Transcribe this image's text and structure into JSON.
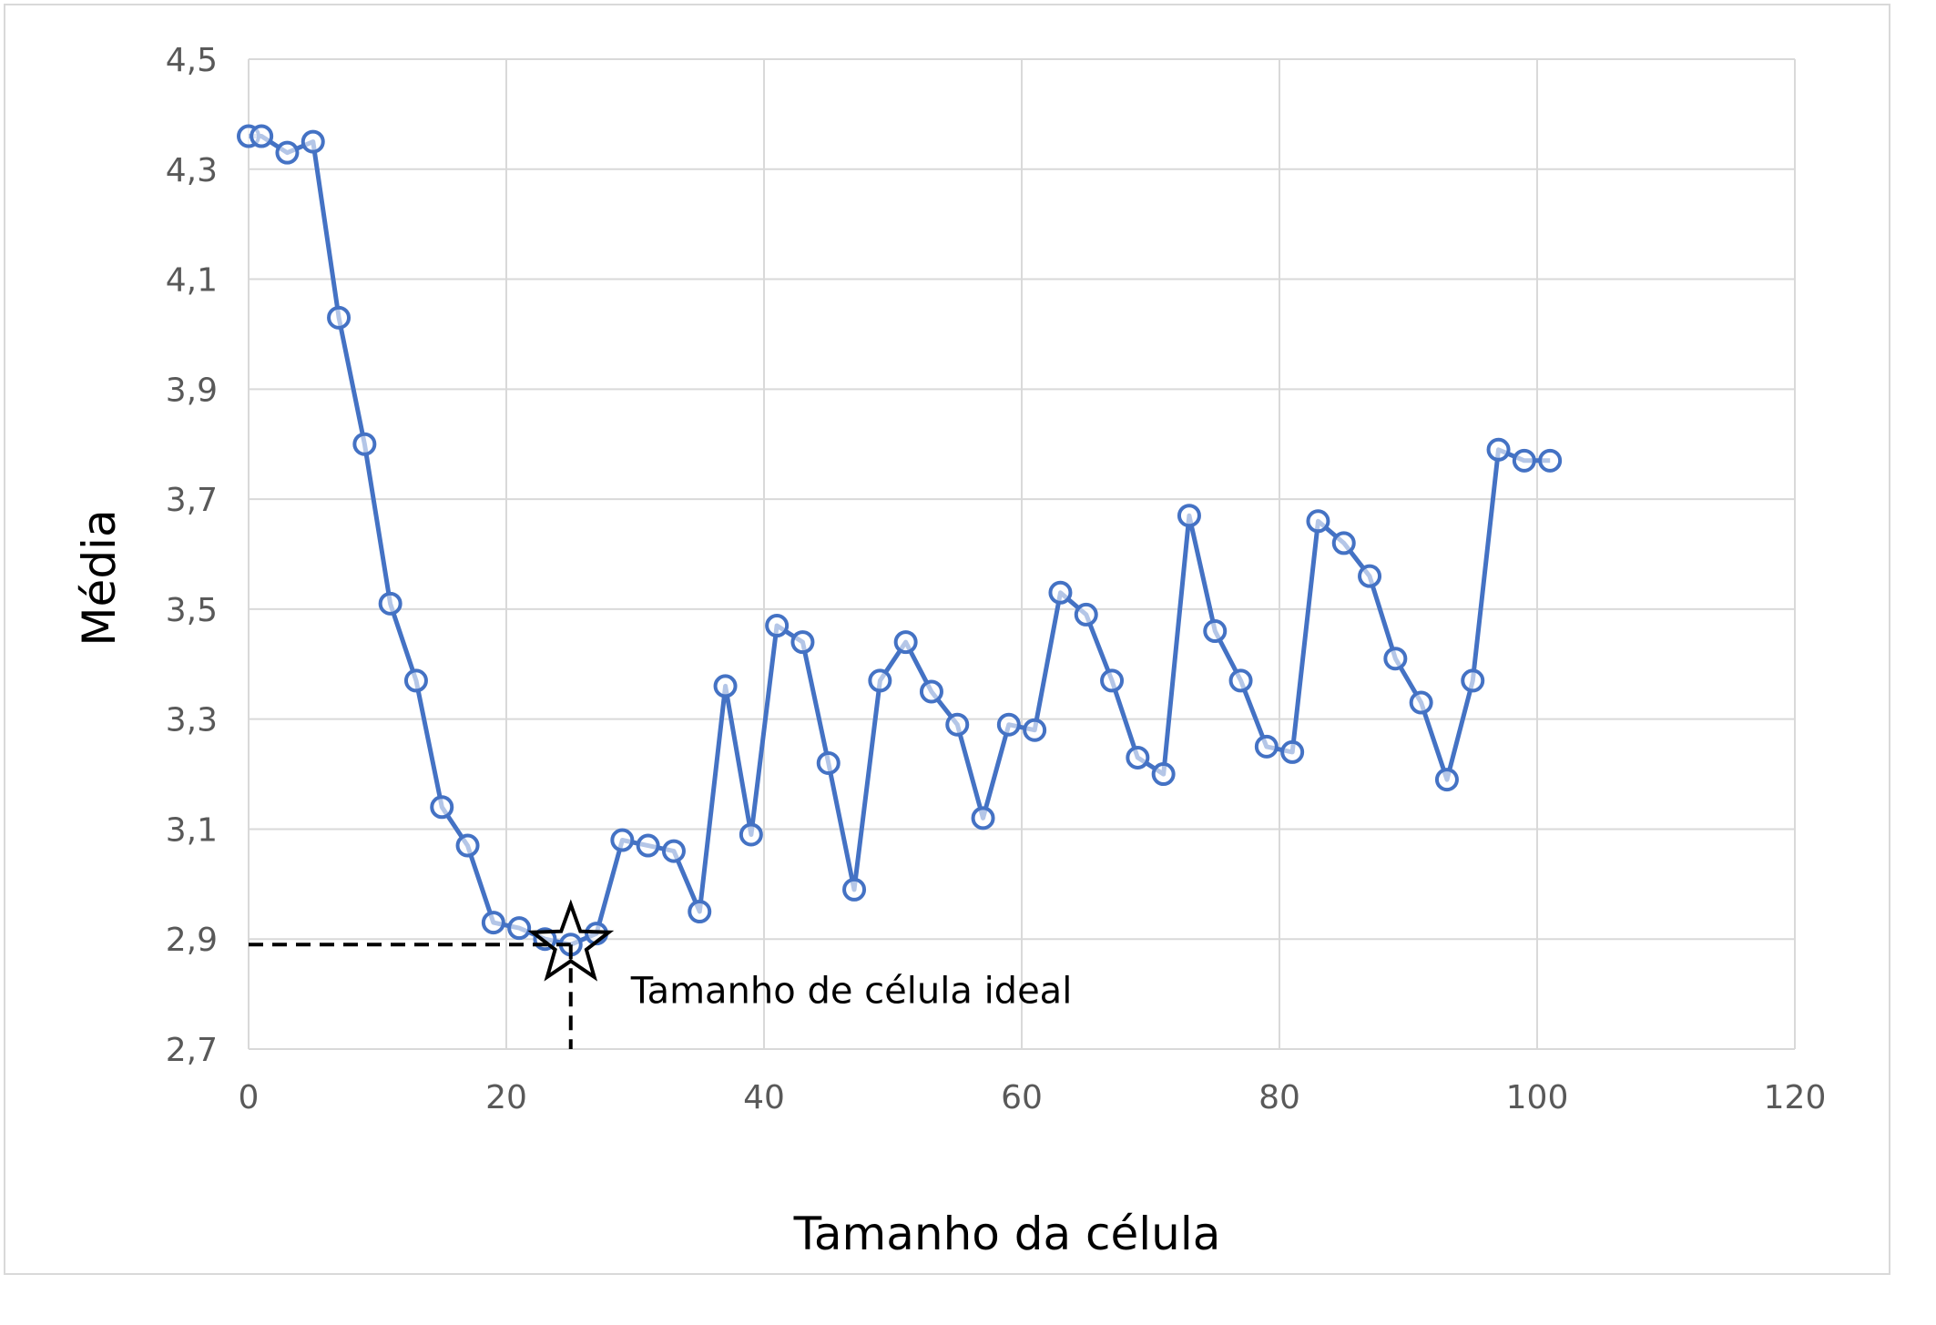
{
  "chart_data": {
    "type": "line",
    "xlabel": "Tamanho da célula",
    "ylabel": "Média",
    "xlim": [
      0,
      120
    ],
    "ylim": [
      2.7,
      4.5
    ],
    "x_ticks": [
      0,
      20,
      40,
      60,
      80,
      100,
      120
    ],
    "y_ticks": [
      2.7,
      2.9,
      3.1,
      3.3,
      3.5,
      3.7,
      3.9,
      4.1,
      4.3,
      4.5
    ],
    "x_tick_labels": [
      "0",
      "20",
      "40",
      "60",
      "80",
      "100",
      "120"
    ],
    "y_tick_labels": [
      "2,7",
      "2,9",
      "3,1",
      "3,3",
      "3,5",
      "3,7",
      "3,9",
      "4,1",
      "4,3",
      "4,5"
    ],
    "grid": true,
    "series": [
      {
        "color": "#4472c4",
        "x": [
          0,
          1,
          3,
          5,
          7,
          9,
          11,
          13,
          15,
          17,
          19,
          21,
          23,
          25,
          27,
          29,
          31,
          33,
          35,
          37,
          39,
          41,
          43,
          45,
          47,
          49,
          51,
          53,
          55,
          57,
          59,
          61,
          63,
          65,
          67,
          69,
          71,
          73,
          75,
          77,
          79,
          81,
          83,
          85,
          87,
          89,
          91,
          93,
          95,
          97,
          99,
          101
        ],
        "y": [
          4.36,
          4.36,
          4.33,
          4.35,
          4.03,
          3.8,
          3.51,
          3.37,
          3.14,
          3.07,
          2.93,
          2.92,
          2.9,
          2.89,
          2.91,
          3.08,
          3.07,
          3.06,
          2.95,
          3.36,
          3.09,
          3.47,
          3.44,
          3.22,
          2.99,
          3.37,
          3.44,
          3.35,
          3.29,
          3.12,
          3.29,
          3.28,
          3.53,
          3.49,
          3.37,
          3.23,
          3.2,
          3.67,
          3.46,
          3.37,
          3.25,
          3.24,
          3.66,
          3.62,
          3.56,
          3.41,
          3.33,
          3.19,
          3.37,
          3.79,
          3.77,
          3.77
        ]
      }
    ],
    "annotation": {
      "text": "Tamanho de célula ideal",
      "x": 25,
      "y": 2.89,
      "marker": "star"
    }
  }
}
